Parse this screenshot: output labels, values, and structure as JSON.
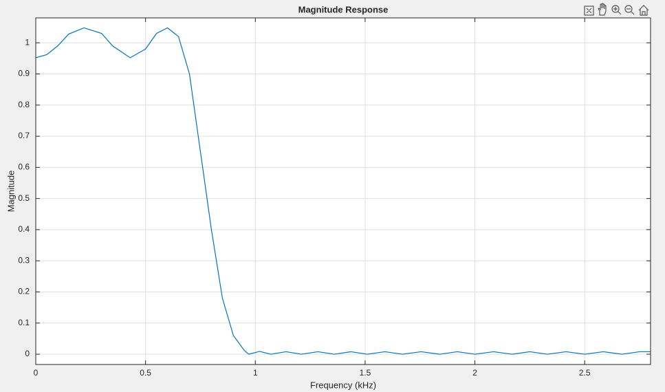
{
  "chart_data": {
    "type": "line",
    "title": "Magnitude Response",
    "xlabel": "Frequency (kHz)",
    "ylabel": "Magnitude",
    "x": [
      0,
      0.05,
      0.1,
      0.15,
      0.22,
      0.3,
      0.35,
      0.43,
      0.5,
      0.55,
      0.6,
      0.65,
      0.7,
      0.75,
      0.8,
      0.85,
      0.9,
      0.95,
      0.97,
      1.02,
      1.07,
      1.14,
      1.21,
      1.285,
      1.36,
      1.435,
      1.51,
      1.59,
      1.67,
      1.755,
      1.84,
      1.92,
      2.0,
      2.085,
      2.17,
      2.25,
      2.33,
      2.415,
      2.5,
      2.585,
      2.67,
      2.75,
      2.8
    ],
    "values": [
      0.952,
      0.962,
      0.99,
      1.028,
      1.048,
      1.03,
      0.99,
      0.952,
      0.98,
      1.03,
      1.048,
      1.02,
      0.9,
      0.65,
      0.4,
      0.18,
      0.06,
      0.012,
      0,
      0.009,
      0,
      0.008,
      0,
      0.008,
      0,
      0.008,
      0,
      0.008,
      0,
      0.008,
      0,
      0.008,
      0,
      0.008,
      0,
      0.008,
      0,
      0.008,
      0,
      0.008,
      0,
      0.008,
      0.008
    ],
    "color": "#0072bd",
    "xlim": [
      0,
      2.8
    ],
    "xticks": [
      0,
      0.5,
      1,
      1.5,
      2,
      2.5
    ],
    "ylim": [
      -0.033,
      1.08
    ],
    "yticks": [
      0,
      0.1,
      0.2,
      0.3,
      0.4,
      0.5,
      0.6,
      0.7,
      0.8,
      0.9,
      1
    ],
    "grid": true
  }
}
